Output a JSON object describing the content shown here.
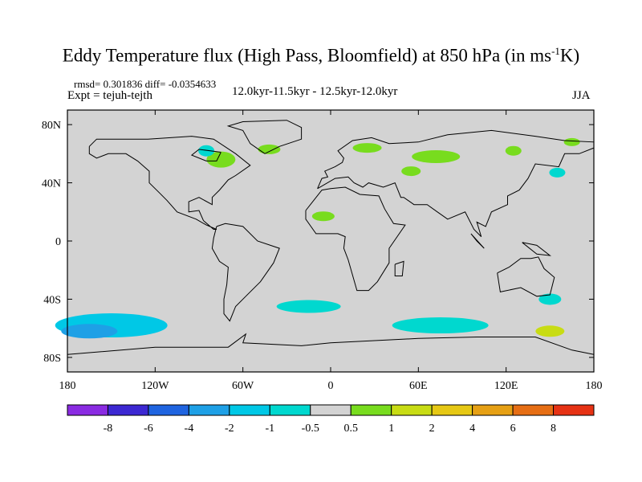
{
  "title": {
    "main": "Eddy Temperature flux (High Pass, Bloomfield) at 850 hPa (in ms",
    "superscript": "-1",
    "tail": "K)"
  },
  "stats": "rmsd= 0.301836 diff= -0.0354633",
  "expt": "Expt = tejuh-tejth",
  "period": "12.0kyr-11.5kyr - 12.5kyr-12.0kyr",
  "season": "JJA",
  "map": {
    "background_color": "#d3d3d3",
    "lon_ticks": [
      "180",
      "120W",
      "60W",
      "0",
      "60E",
      "120E",
      "180"
    ],
    "lat_ticks": [
      "80N",
      "40N",
      "0",
      "40S",
      "80S"
    ]
  },
  "colorbar": {
    "colors": [
      "#8a2be2",
      "#3c28d2",
      "#1f64e0",
      "#1ea0e6",
      "#00c8e6",
      "#00d8cf",
      "#d3d3d3",
      "#78dc1e",
      "#c8dc14",
      "#e6c814",
      "#e6a014",
      "#e66e14",
      "#e63214"
    ],
    "labels": [
      "-8",
      "-6",
      "-4",
      "-2",
      "-1",
      "-0.5",
      "0.5",
      "1",
      "2",
      "4",
      "6",
      "8"
    ]
  },
  "chart_data": {
    "type": "heatmap",
    "title": "Eddy Temperature flux (High Pass, Bloomfield) at 850 hPa (in ms-1K)",
    "levels": [
      -8,
      -6,
      -4,
      -2,
      -1,
      -0.5,
      0.5,
      1,
      2,
      4,
      6,
      8
    ],
    "xlim": [
      -180,
      180
    ],
    "ylim": [
      -90,
      90
    ],
    "regions": [
      {
        "name": "NE Canada",
        "value": 0.75,
        "lon": -75,
        "lat": 56
      },
      {
        "name": "Hudson Bay",
        "value": -0.75,
        "lon": -85,
        "lat": 62
      },
      {
        "name": "Greenland",
        "value": 0.75,
        "lon": -42,
        "lat": 63
      },
      {
        "name": "Scandinavia",
        "value": 0.75,
        "lon": 25,
        "lat": 64
      },
      {
        "name": "Western Siberia",
        "value": 0.75,
        "lon": 72,
        "lat": 58
      },
      {
        "name": "Central Asia",
        "value": 0.75,
        "lon": 55,
        "lat": 48
      },
      {
        "name": "Eastern Siberia",
        "value": 0.75,
        "lon": 125,
        "lat": 62
      },
      {
        "name": "Kamchatka",
        "value": 0.75,
        "lon": 165,
        "lat": 68
      },
      {
        "name": "NW Pacific",
        "value": -0.75,
        "lon": 155,
        "lat": 47
      },
      {
        "name": "West Africa",
        "value": 0.75,
        "lon": -5,
        "lat": 17
      },
      {
        "name": "South Pacific",
        "value": -1.5,
        "lon": -150,
        "lat": -58
      },
      {
        "name": "South Pacific core",
        "value": -3,
        "lon": -165,
        "lat": -62
      },
      {
        "name": "South Atlantic",
        "value": -0.75,
        "lon": -15,
        "lat": -45
      },
      {
        "name": "Southern Indian Ocean",
        "value": -0.75,
        "lon": 75,
        "lat": -58
      },
      {
        "name": "South of Australia",
        "value": 1.5,
        "lon": 150,
        "lat": -62
      },
      {
        "name": "East Australia",
        "value": -0.75,
        "lon": 150,
        "lat": -40
      }
    ]
  }
}
